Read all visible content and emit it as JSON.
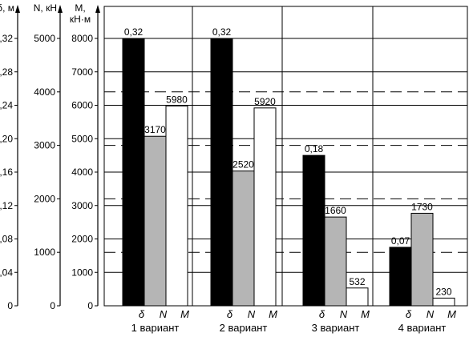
{
  "chart_data": {
    "type": "bar",
    "categories": [
      "1 вариант",
      "2 вариант",
      "3 вариант",
      "4 вариант"
    ],
    "bar_symbols": [
      "δ",
      "N",
      "M"
    ],
    "series": [
      {
        "name": "δ",
        "values": [
          0.32,
          0.32,
          0.18,
          0.07
        ],
        "value_labels": [
          "0,32",
          "0,32",
          "0,18",
          "0,07"
        ],
        "color": "#000000"
      },
      {
        "name": "N",
        "values": [
          3170,
          2520,
          1660,
          1730
        ],
        "value_labels": [
          "3170",
          "2520",
          "1660",
          "1730"
        ],
        "color": "#b5b5b5"
      },
      {
        "name": "M",
        "values": [
          5980,
          5920,
          532,
          230
        ],
        "value_labels": [
          "5980",
          "5920",
          "532",
          "230"
        ],
        "color": "#ffffff"
      }
    ],
    "axes": [
      {
        "title": "δ, м",
        "ticks": [
          "0",
          "0,04",
          "0,08",
          "0,12",
          "0,16",
          "0,20",
          "0,24",
          "0,28",
          "0,32"
        ],
        "tick_values": [
          0,
          0.04,
          0.08,
          0.12,
          0.16,
          0.2,
          0.24,
          0.28,
          0.32
        ],
        "range": [
          0,
          0.32
        ]
      },
      {
        "title": "N, кН",
        "ticks": [
          "0",
          "1000",
          "2000",
          "3000",
          "4000",
          "5000"
        ],
        "tick_values": [
          0,
          1000,
          2000,
          3000,
          4000,
          5000
        ],
        "range": [
          0,
          5000
        ]
      },
      {
        "title_line1": "M,",
        "title_line2": "кН·м",
        "ticks": [
          "0",
          "1000",
          "2000",
          "3000",
          "4000",
          "5000",
          "6000",
          "7000",
          "8000"
        ],
        "tick_values": [
          0,
          1000,
          2000,
          3000,
          4000,
          5000,
          6000,
          7000,
          8000
        ],
        "range": [
          0,
          8000
        ]
      }
    ],
    "grid": true
  }
}
